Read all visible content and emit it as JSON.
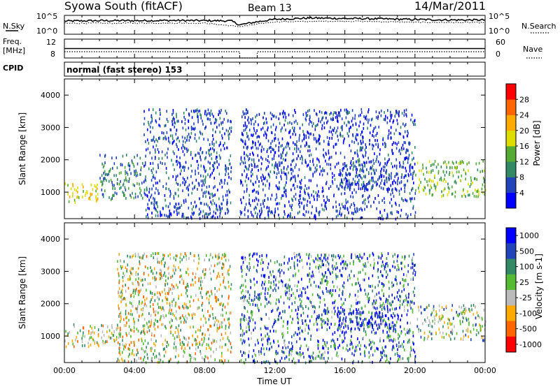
{
  "header": {
    "station": "Syowa South (fitACF)",
    "beam": "Beam 13",
    "date": "14/Mar/2011"
  },
  "noise_panel": {
    "left_label": "N.Sky",
    "right_label": "N.Search",
    "tick_high": "10^5",
    "tick_low": "10^0",
    "right_tick_high": "10^5",
    "right_tick_low": "10^0"
  },
  "freq_panel": {
    "left_label_1": "Freq.",
    "left_label_2": "[MHz]",
    "right_label": "Nave",
    "left_ticks": [
      "12",
      "8"
    ],
    "right_ticks": [
      "60",
      "0"
    ]
  },
  "cpid": {
    "label": "CPID",
    "mode_text": "normal (fast stereo) 153"
  },
  "x_axis": {
    "label": "Time UT",
    "ticks": [
      "00:00",
      "04:00",
      "08:00",
      "12:00",
      "16:00",
      "20:00",
      "00:00"
    ]
  },
  "power_panel": {
    "ylabel": "Slant Range [km]",
    "yticks": [
      "1000",
      "2000",
      "3000",
      "4000"
    ],
    "colorbar_label": "Power [dB]",
    "colorbar_ticks": [
      "4",
      "8",
      "12",
      "16",
      "20",
      "24",
      "28"
    ],
    "colors": [
      "#0000ff",
      "#2244bb",
      "#338866",
      "#55aa33",
      "#dddd00",
      "#ffaa00",
      "#ff6600",
      "#ff0000"
    ]
  },
  "velocity_panel": {
    "ylabel": "Slant Range [km]",
    "yticks": [
      "1000",
      "2000",
      "3000",
      "4000"
    ],
    "colorbar_label": "Velocity [m s-1]",
    "colorbar_ticks": [
      "1000",
      "500",
      "100",
      "25",
      "-25",
      "-100",
      "-500",
      "-1000"
    ],
    "colors": [
      "#0000ff",
      "#2244bb",
      "#338866",
      "#55bb33",
      "#bbbbbb",
      "#ffaa00",
      "#ff6600",
      "#ff0000"
    ]
  },
  "chart_data": [
    {
      "type": "line",
      "title": "N.Sky / N.Search",
      "xlabel": "Time UT",
      "ylabel": "",
      "xlim": [
        "00:00",
        "24:00"
      ],
      "yscale": "log",
      "ylim": [
        1,
        100000
      ],
      "series": [
        {
          "name": "N.Sky",
          "x": [
            "00:00",
            "02:00",
            "04:00",
            "06:00",
            "08:00",
            "09:30",
            "10:00",
            "11:00",
            "12:00",
            "14:00",
            "16:00",
            "18:00",
            "20:00",
            "22:00",
            "24:00"
          ],
          "values": [
            3000,
            4000,
            4000,
            4500,
            4000,
            3500,
            300,
            2000,
            9000,
            20000,
            15000,
            12000,
            8000,
            6000,
            6000
          ]
        },
        {
          "name": "N.Search",
          "x": [
            "00:00",
            "04:00",
            "08:00",
            "10:00",
            "12:00",
            "16:00",
            "20:00",
            "24:00"
          ],
          "values": [
            800,
            900,
            900,
            100,
            2000,
            3000,
            1500,
            1200
          ]
        }
      ]
    },
    {
      "type": "line",
      "title": "Freq. / Nave",
      "xlabel": "Time UT",
      "xlim": [
        "00:00",
        "24:00"
      ],
      "series": [
        {
          "name": "Freq. [MHz]",
          "x": [
            "00:00",
            "24:00"
          ],
          "values": [
            10,
            10
          ]
        },
        {
          "name": "Nave",
          "x": [
            "00:00",
            "09:30",
            "10:00",
            "11:00",
            "24:00"
          ],
          "values": [
            20,
            20,
            0,
            20,
            20
          ]
        }
      ]
    },
    {
      "type": "heatmap",
      "title": "Power [dB]",
      "xlabel": "Time UT",
      "ylabel": "Slant Range [km]",
      "xlim": [
        0,
        24
      ],
      "ylim": [
        180,
        4500
      ],
      "colorbar": {
        "label": "Power [dB]",
        "min": 0,
        "max": 32,
        "ticks": [
          4,
          8,
          12,
          16,
          20,
          24,
          28
        ]
      },
      "regions": [
        {
          "t_start": 0.0,
          "t_end": 2.0,
          "range_min": 700,
          "range_max": 1300,
          "power": 18
        },
        {
          "t_start": 2.0,
          "t_end": 4.5,
          "range_min": 800,
          "range_max": 2200,
          "power": 10
        },
        {
          "t_start": 4.5,
          "t_end": 9.5,
          "range_min": 200,
          "range_max": 3600,
          "power": 6
        },
        {
          "t_start": 10.0,
          "t_end": 20.0,
          "range_min": 200,
          "range_max": 3600,
          "power": 5
        },
        {
          "t_start": 15.5,
          "t_end": 19.0,
          "range_min": 1100,
          "range_max": 2000,
          "power": 6
        },
        {
          "t_start": 20.0,
          "t_end": 24.0,
          "range_min": 900,
          "range_max": 2000,
          "power": 14
        }
      ]
    },
    {
      "type": "heatmap",
      "title": "Velocity [m s-1]",
      "xlabel": "Time UT",
      "ylabel": "Slant Range [km]",
      "xlim": [
        0,
        24
      ],
      "ylim": [
        180,
        4500
      ],
      "colorbar": {
        "label": "Velocity [m s-1]",
        "min": -1000,
        "max": 1000,
        "ticks": [
          1000,
          500,
          100,
          25,
          -25,
          -100,
          -500,
          -1000
        ]
      },
      "regions": [
        {
          "t_start": 0.0,
          "t_end": 3.0,
          "range_min": 700,
          "range_max": 1400,
          "velocity": -100
        },
        {
          "t_start": 3.0,
          "t_end": 9.5,
          "range_min": 200,
          "range_max": 3600,
          "velocity": -100
        },
        {
          "t_start": 10.0,
          "t_end": 20.0,
          "range_min": 200,
          "range_max": 3600,
          "velocity": 500
        },
        {
          "t_start": 15.5,
          "t_end": 19.0,
          "range_min": 1200,
          "range_max": 1900,
          "velocity": 1000
        },
        {
          "t_start": 20.0,
          "t_end": 24.0,
          "range_min": 900,
          "range_max": 2000,
          "velocity": 100
        }
      ]
    }
  ]
}
